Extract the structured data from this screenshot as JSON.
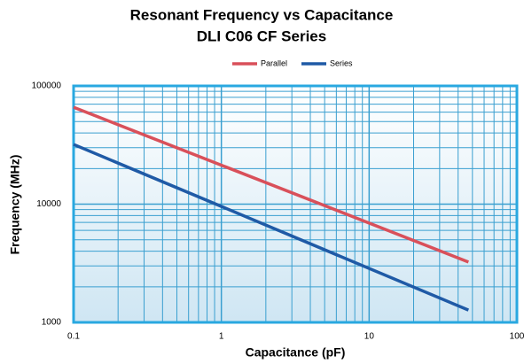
{
  "chart_data": {
    "type": "line",
    "title": "Resonant Frequency vs Capacitance",
    "subtitle": "DLI C06 CF Series",
    "x_label": "Capacitance (pF)",
    "y_label": "Frequency (MHz)",
    "x": [
      0.1,
      47
    ],
    "series": [
      {
        "name": "Parallel",
        "color": "#d9505a",
        "values": [
          66000,
          3240
        ]
      },
      {
        "name": "Series",
        "color": "#1f5aa6",
        "values": [
          32000,
          1270
        ]
      }
    ],
    "xlim": [
      0.1,
      100
    ],
    "xticks": [
      0.1,
      1,
      10,
      100
    ],
    "ylim": [
      1000,
      100000
    ],
    "yticks": [
      1000,
      10000,
      100000
    ],
    "x_log": true,
    "y_log": true,
    "grid": true,
    "minor_grid": true,
    "legend": "top"
  }
}
